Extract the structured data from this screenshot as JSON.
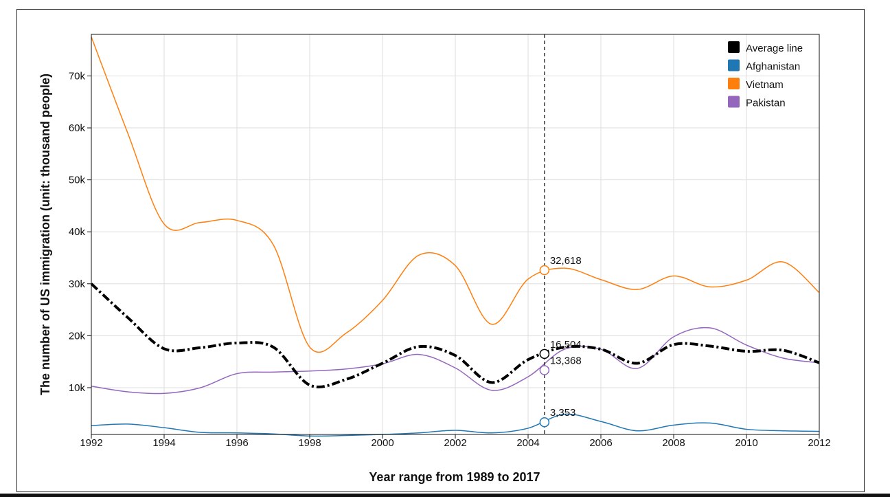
{
  "chart_data": {
    "type": "line",
    "xlabel": "Year range from 1989 to 2017",
    "ylabel": "The number of US immigration (unit: thousand people)",
    "xlim": [
      1992,
      2012
    ],
    "ylim": [
      1000,
      78000
    ],
    "x_ticks": [
      1992,
      1994,
      1996,
      1998,
      2000,
      2002,
      2004,
      2006,
      2008,
      2010,
      2012
    ],
    "y_ticks": [
      {
        "value": 10000,
        "label": "10k"
      },
      {
        "value": 20000,
        "label": "20k"
      },
      {
        "value": 30000,
        "label": "30k"
      },
      {
        "value": 40000,
        "label": "40k"
      },
      {
        "value": 50000,
        "label": "50k"
      },
      {
        "value": 60000,
        "label": "60k"
      },
      {
        "value": 70000,
        "label": "70k"
      }
    ],
    "grid": true,
    "legend_position": "top-right",
    "x": [
      1992,
      1993,
      1994,
      1995,
      1996,
      1997,
      1998,
      1999,
      2000,
      2001,
      2002,
      2003,
      2004,
      2005,
      2006,
      2007,
      2008,
      2009,
      2010,
      2011,
      2012
    ],
    "series": [
      {
        "name": "Average line",
        "color": "#000000",
        "style": "dash-dot",
        "values": [
          30000,
          23500,
          17500,
          17700,
          18600,
          17800,
          10500,
          11600,
          14700,
          17900,
          16200,
          11000,
          15400,
          17800,
          17400,
          14700,
          18300,
          18000,
          17000,
          17200,
          14800
        ]
      },
      {
        "name": "Afghanistan",
        "color": "#1f77b4",
        "style": "solid",
        "values": [
          2700,
          3000,
          2300,
          1400,
          1300,
          1100,
          700,
          800,
          1000,
          1300,
          1800,
          1300,
          2200,
          4900,
          3500,
          1700,
          2800,
          3200,
          2000,
          1700,
          1600
        ]
      },
      {
        "name": "Vietnam",
        "color": "#ff7f0e",
        "style": "solid",
        "values": [
          77500,
          59000,
          41500,
          41800,
          42200,
          37500,
          17800,
          20500,
          26800,
          35500,
          33500,
          22200,
          30900,
          33000,
          30800,
          28900,
          31500,
          29400,
          30700,
          34200,
          28300
        ]
      },
      {
        "name": "Pakistan",
        "color": "#9467bd",
        "style": "solid",
        "values": [
          10300,
          9200,
          8900,
          10000,
          12700,
          13000,
          13200,
          13600,
          14600,
          16400,
          13800,
          9500,
          12100,
          17400,
          17400,
          13700,
          19800,
          21500,
          18200,
          15700,
          14800
        ]
      }
    ],
    "hover": {
      "x": 2004.45,
      "points": [
        {
          "series": "Vietnam",
          "value": 32618,
          "label": "32,618"
        },
        {
          "series": "Average line",
          "value": 16504,
          "label": "16,504"
        },
        {
          "series": "Pakistan",
          "value": 13368,
          "label": "13,368"
        },
        {
          "series": "Afghanistan",
          "value": 3353,
          "label": "3,353"
        }
      ]
    }
  }
}
